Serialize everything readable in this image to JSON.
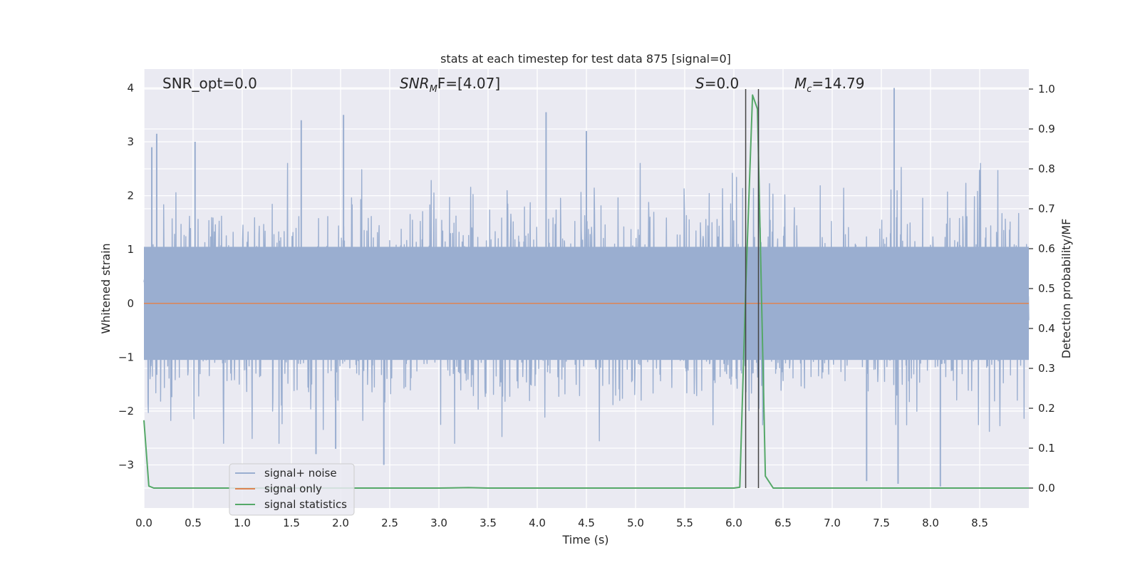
{
  "chart_data": {
    "type": "line",
    "title": "stats at each timestep for test data 875 [signal=0]",
    "xlabel": "Time (s)",
    "ylabel_left": "Whitened strain",
    "ylabel_right": "Detection probability/MF",
    "xlim": [
      0.0,
      9.0
    ],
    "ylim_left": [
      -3.8,
      4.35
    ],
    "ylim_right": [
      -0.05,
      1.05
    ],
    "x_ticks": [
      "0.0",
      "0.5",
      "1.0",
      "1.5",
      "2.0",
      "2.5",
      "3.0",
      "3.5",
      "4.0",
      "4.5",
      "5.0",
      "5.5",
      "6.0",
      "6.5",
      "7.0",
      "7.5",
      "8.0",
      "8.5"
    ],
    "y_left_ticks": [
      "4",
      "3",
      "2",
      "1",
      "0",
      "−1",
      "−2",
      "−3"
    ],
    "y_right_ticks": [
      "1.0",
      "0.9",
      "0.8",
      "0.7",
      "0.6",
      "0.5",
      "0.4",
      "0.3",
      "0.2",
      "0.1",
      "0.0"
    ],
    "grid": true,
    "annotations": [
      {
        "prefix": "SNR_opt=0.0",
        "italic": "",
        "sub": "",
        "suffix": ""
      },
      {
        "prefix": "",
        "italic": "SNR",
        "sub": "M",
        "suffix": "F=[4.07]"
      },
      {
        "prefix": "",
        "italic": "S",
        "sub": "",
        "suffix": "=0.0"
      },
      {
        "prefix": "",
        "italic": "M",
        "sub": "c",
        "suffix": "=14.79"
      }
    ],
    "vertical_lines_x": [
      6.12,
      6.25
    ],
    "legend_position": "lower-left",
    "series": [
      {
        "name": "signal+ noise",
        "axis": "left",
        "color": "#9aaed0",
        "description": "whitened noise, amplitude envelope about ±2.5 with peaks reaching 4.0 and -3.5",
        "peaks": [
          {
            "x": 0.08,
            "y": 2.9
          },
          {
            "x": 0.13,
            "y": 3.15
          },
          {
            "x": 0.52,
            "y": 3.0
          },
          {
            "x": 1.6,
            "y": 3.4
          },
          {
            "x": 2.03,
            "y": 3.5
          },
          {
            "x": 4.09,
            "y": 3.55
          },
          {
            "x": 4.5,
            "y": 3.2
          },
          {
            "x": 6.25,
            "y": 3.75
          },
          {
            "x": 7.63,
            "y": 4.0
          },
          {
            "x": 2.44,
            "y": -3.0
          },
          {
            "x": 1.75,
            "y": -2.8
          },
          {
            "x": 1.95,
            "y": -2.7
          },
          {
            "x": 7.67,
            "y": -3.35
          },
          {
            "x": 8.1,
            "y": -3.4
          },
          {
            "x": 7.35,
            "y": -3.3
          }
        ]
      },
      {
        "name": "signal only",
        "axis": "left",
        "color": "#dd8452",
        "x": [
          0.0,
          9.0
        ],
        "y": [
          0.0,
          0.0
        ]
      },
      {
        "name": "signal statistics",
        "axis": "right",
        "color": "#55a868",
        "x": [
          0.0,
          0.05,
          0.1,
          0.15,
          1.0,
          2.0,
          3.0,
          3.3,
          3.5,
          4.0,
          5.0,
          5.5,
          6.0,
          6.06,
          6.12,
          6.19,
          6.24,
          6.32,
          6.4,
          6.5,
          7.0,
          8.0,
          9.0
        ],
        "y": [
          0.17,
          0.005,
          0.0,
          0.0,
          0.0,
          0.0,
          0.0,
          0.001,
          0.0,
          0.0,
          0.0,
          0.0,
          0.0,
          0.002,
          0.5,
          0.985,
          0.95,
          0.03,
          0.0,
          0.0,
          0.0,
          0.0,
          0.0
        ]
      }
    ]
  }
}
